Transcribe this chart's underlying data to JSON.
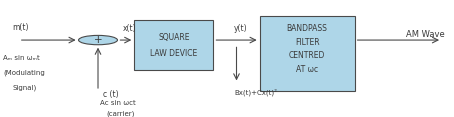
{
  "bg_color": "#ffffff",
  "box_fill": "#aed6e8",
  "box_edge": "#4a4a4a",
  "arrow_color": "#4a4a4a",
  "text_color": "#3a3a3a",
  "fig_width": 4.54,
  "fig_height": 1.17,
  "labels": {
    "mt": "m(t)",
    "xt": "x(t)",
    "yt": "y(t)",
    "ct": "c (t)",
    "carrier_formula": "Aᴄ sin ωᴄt",
    "carrier2": "(carrier)",
    "modulating_formula": "Aₘ sin ωₘt",
    "modulating2": "(Modulating",
    "modulating3": "Signal)",
    "bx": "Bx(t)+Cx(t)²",
    "amwave": "AM Wave",
    "squarelaw1": "SQUARE",
    "squarelaw2": "LAW DEVICE",
    "bandpass1": "BANDPASS",
    "bandpass2": "FILTER",
    "bandpass3": "CENTRED",
    "bandpass4": "AT ωᴄ",
    "plus": "+"
  }
}
